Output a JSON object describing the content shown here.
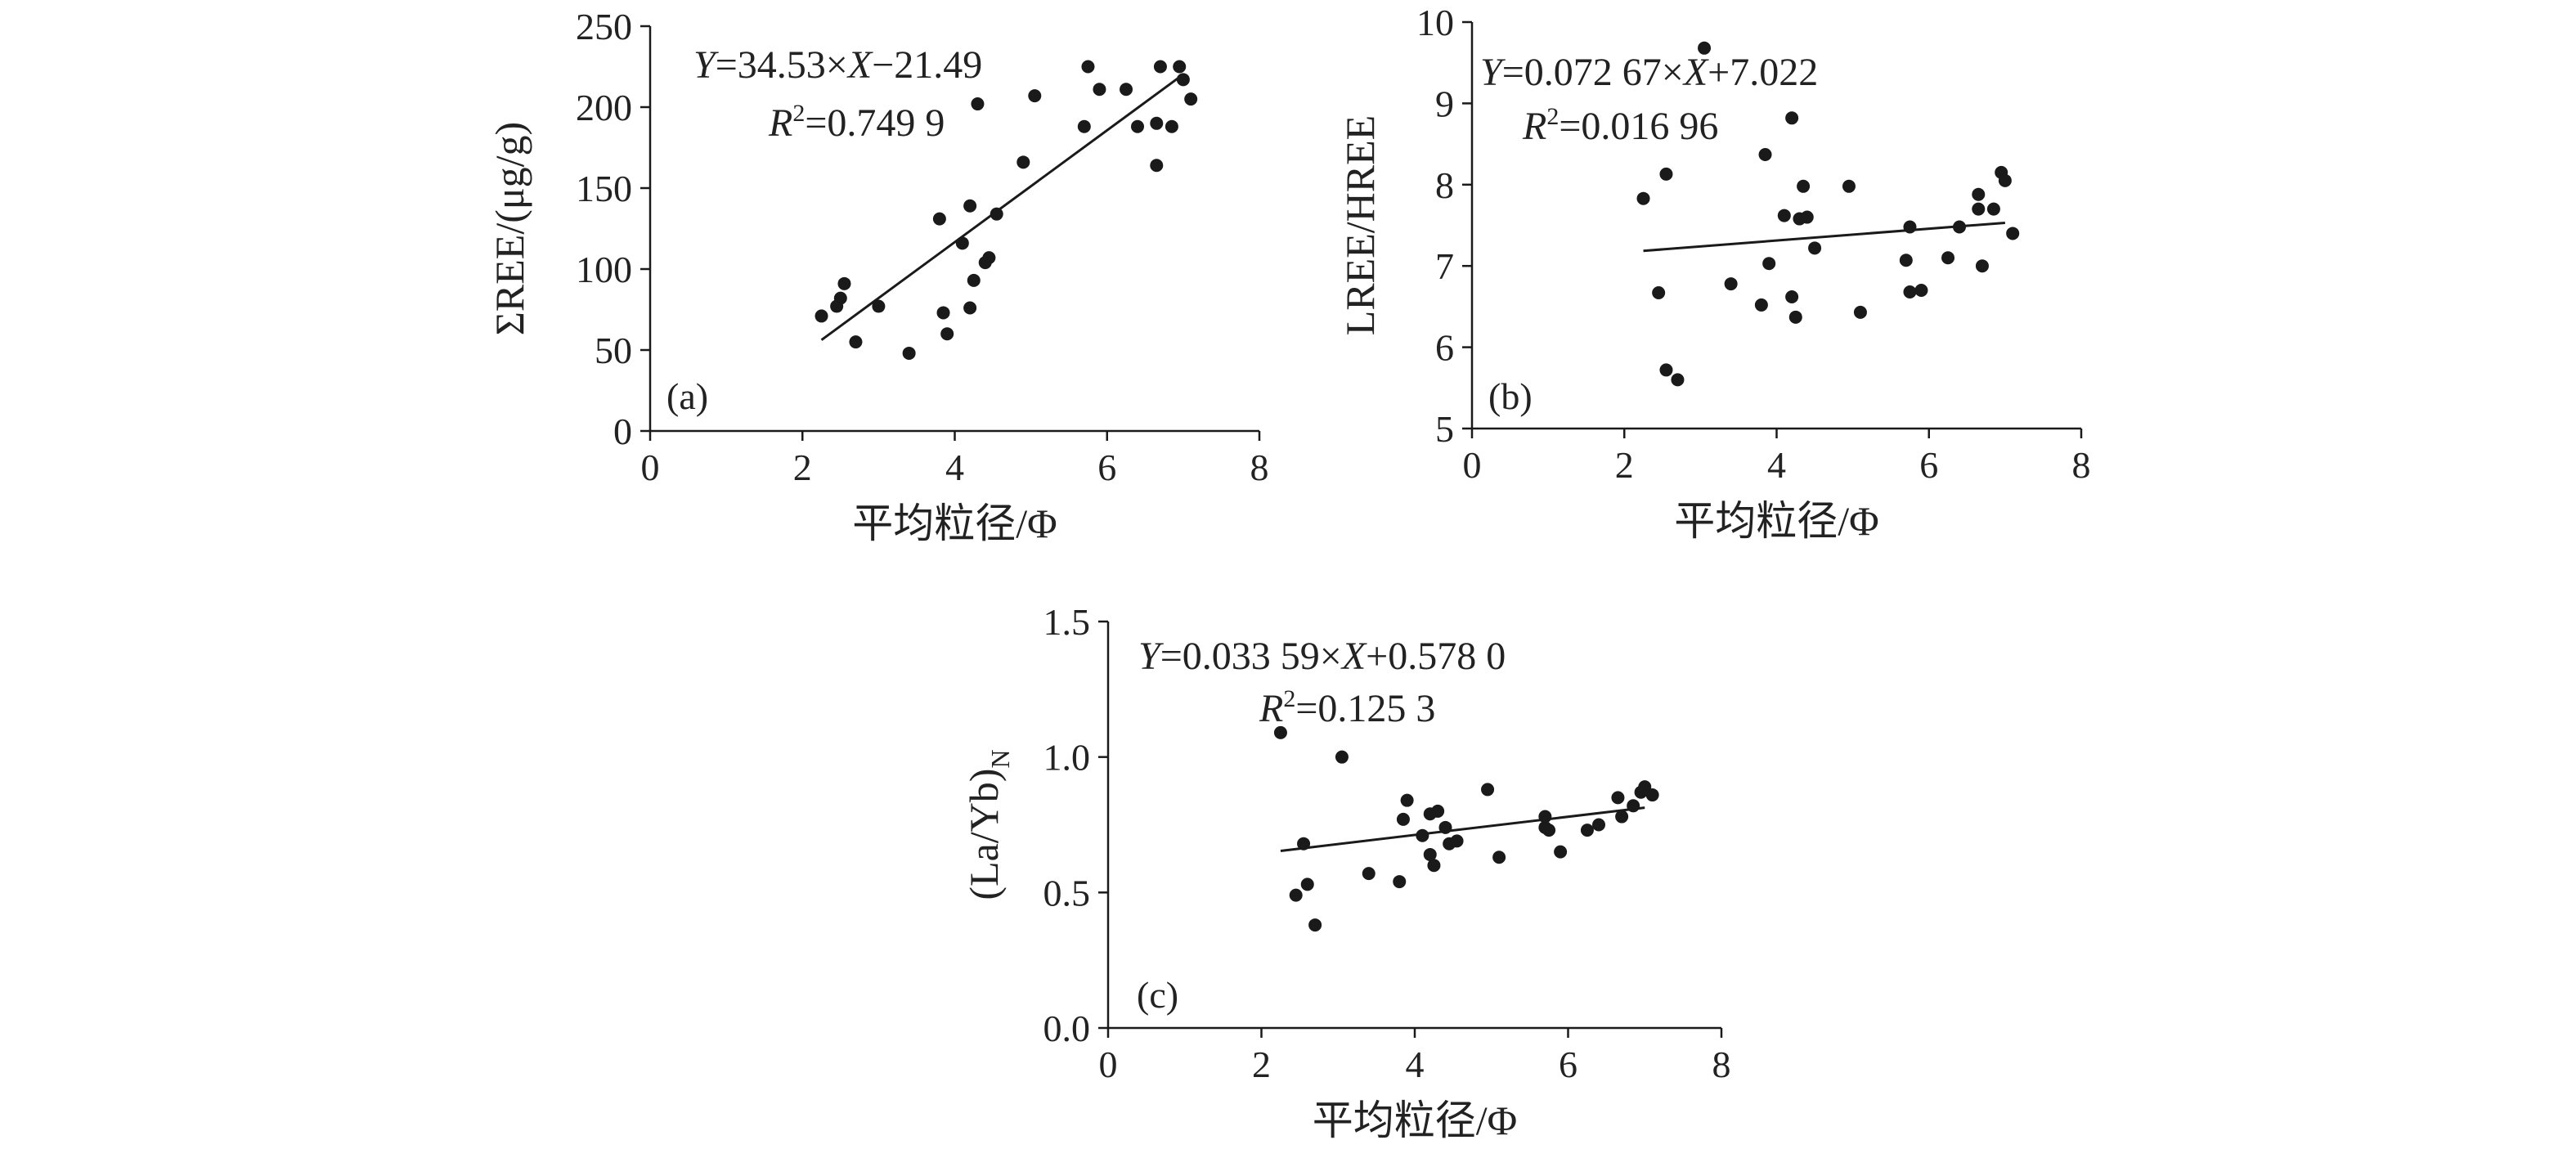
{
  "figure": {
    "style": {
      "point_color": "#1a1a1a",
      "line_color": "#1a1a1a",
      "axis_color": "#1a1a1a"
    }
  },
  "chart_data": [
    {
      "type": "scatter",
      "panel_label": "(a)",
      "equation": {
        "prefix": "Y",
        "mid": "=34.53×",
        "var": "X",
        "suffix": "−21.49"
      },
      "r2": {
        "r": "R",
        "sup": "2",
        "rest": "=0.749 9"
      },
      "xlabel": "平均粒径/Φ",
      "ylabel": "ΣREE/(μg/g)",
      "ylabel_sub": "",
      "xlim": [
        0,
        8
      ],
      "ylim": [
        0,
        250
      ],
      "xticks": [
        0,
        2,
        4,
        6,
        8
      ],
      "yticks": [
        0,
        50,
        100,
        150,
        200,
        250
      ],
      "fit": {
        "slope": 34.53,
        "intercept": -21.49,
        "x_range": [
          2.25,
          7.0
        ]
      },
      "points": [
        [
          2.25,
          71
        ],
        [
          2.45,
          77
        ],
        [
          2.5,
          82
        ],
        [
          2.55,
          91
        ],
        [
          2.7,
          55
        ],
        [
          3.0,
          77
        ],
        [
          3.4,
          48
        ],
        [
          3.8,
          131
        ],
        [
          3.85,
          73
        ],
        [
          3.9,
          60
        ],
        [
          4.1,
          116
        ],
        [
          4.2,
          139
        ],
        [
          4.2,
          76
        ],
        [
          4.25,
          93
        ],
        [
          4.3,
          202
        ],
        [
          4.4,
          104
        ],
        [
          4.45,
          107
        ],
        [
          4.55,
          134
        ],
        [
          4.9,
          166
        ],
        [
          5.05,
          207
        ],
        [
          5.7,
          188
        ],
        [
          5.75,
          225
        ],
        [
          5.9,
          211
        ],
        [
          6.25,
          211
        ],
        [
          6.4,
          188
        ],
        [
          6.65,
          190
        ],
        [
          6.65,
          164
        ],
        [
          6.7,
          225
        ],
        [
          6.85,
          188
        ],
        [
          6.95,
          225
        ],
        [
          7.0,
          217
        ],
        [
          7.1,
          205
        ]
      ]
    },
    {
      "type": "scatter",
      "panel_label": "(b)",
      "equation": {
        "prefix": "Y",
        "mid": "=0.072 67×",
        "var": "X",
        "suffix": "+7.022"
      },
      "r2": {
        "r": "R",
        "sup": "2",
        "rest": "=0.016 96"
      },
      "xlabel": "平均粒径/Φ",
      "ylabel": "LREE/HREE",
      "ylabel_sub": "",
      "xlim": [
        0,
        8
      ],
      "ylim": [
        5,
        10
      ],
      "xticks": [
        0,
        2,
        4,
        6,
        8
      ],
      "yticks": [
        5,
        6,
        7,
        8,
        9,
        10
      ],
      "fit": {
        "slope": 0.07267,
        "intercept": 7.022,
        "x_range": [
          2.25,
          7.0
        ]
      },
      "points": [
        [
          2.25,
          7.83
        ],
        [
          2.45,
          6.67
        ],
        [
          2.55,
          8.13
        ],
        [
          2.55,
          5.72
        ],
        [
          2.7,
          5.6
        ],
        [
          3.05,
          9.68
        ],
        [
          3.4,
          6.78
        ],
        [
          3.8,
          6.52
        ],
        [
          3.85,
          8.37
        ],
        [
          3.9,
          7.03
        ],
        [
          4.1,
          7.62
        ],
        [
          4.2,
          8.82
        ],
        [
          4.2,
          6.62
        ],
        [
          4.25,
          6.37
        ],
        [
          4.3,
          7.58
        ],
        [
          4.35,
          7.98
        ],
        [
          4.4,
          7.6
        ],
        [
          4.5,
          7.22
        ],
        [
          4.95,
          7.98
        ],
        [
          5.1,
          6.43
        ],
        [
          5.7,
          7.07
        ],
        [
          5.75,
          7.48
        ],
        [
          5.75,
          6.68
        ],
        [
          5.9,
          6.7
        ],
        [
          6.25,
          7.1
        ],
        [
          6.4,
          7.48
        ],
        [
          6.65,
          7.88
        ],
        [
          6.65,
          7.7
        ],
        [
          6.7,
          7.0
        ],
        [
          6.85,
          7.7
        ],
        [
          6.95,
          8.15
        ],
        [
          7.0,
          8.05
        ],
        [
          7.1,
          7.4
        ]
      ]
    },
    {
      "type": "scatter",
      "panel_label": "(c)",
      "equation": {
        "prefix": "Y",
        "mid": "=0.033 59×",
        "var": "X",
        "suffix": "+0.578 0"
      },
      "r2": {
        "r": "R",
        "sup": "2",
        "rest": "=0.125 3"
      },
      "xlabel": "平均粒径/Φ",
      "ylabel": "(La/Yb)",
      "ylabel_sub": "N",
      "xlim": [
        0,
        8
      ],
      "ylim": [
        0,
        1.5
      ],
      "xticks": [
        0,
        2,
        4,
        6,
        8
      ],
      "yticks": [
        0.0,
        0.5,
        1.0,
        1.5
      ],
      "ytick_labels": [
        "0.0",
        "0.5",
        "1.0",
        "1.5"
      ],
      "fit": {
        "slope": 0.03359,
        "intercept": 0.578,
        "x_range": [
          2.25,
          7.0
        ]
      },
      "points": [
        [
          2.25,
          1.09
        ],
        [
          2.45,
          0.49
        ],
        [
          2.55,
          0.68
        ],
        [
          2.6,
          0.53
        ],
        [
          2.7,
          0.38
        ],
        [
          3.05,
          1.0
        ],
        [
          3.4,
          0.57
        ],
        [
          3.8,
          0.54
        ],
        [
          3.85,
          0.77
        ],
        [
          3.9,
          0.84
        ],
        [
          4.1,
          0.71
        ],
        [
          4.2,
          0.64
        ],
        [
          4.2,
          0.79
        ],
        [
          4.25,
          0.6
        ],
        [
          4.3,
          0.8
        ],
        [
          4.4,
          0.74
        ],
        [
          4.45,
          0.68
        ],
        [
          4.55,
          0.69
        ],
        [
          4.95,
          0.88
        ],
        [
          5.1,
          0.63
        ],
        [
          5.7,
          0.78
        ],
        [
          5.7,
          0.74
        ],
        [
          5.75,
          0.73
        ],
        [
          5.9,
          0.65
        ],
        [
          6.25,
          0.73
        ],
        [
          6.4,
          0.75
        ],
        [
          6.65,
          0.85
        ],
        [
          6.7,
          0.78
        ],
        [
          6.85,
          0.82
        ],
        [
          6.95,
          0.87
        ],
        [
          7.0,
          0.89
        ],
        [
          7.1,
          0.86
        ]
      ]
    }
  ]
}
